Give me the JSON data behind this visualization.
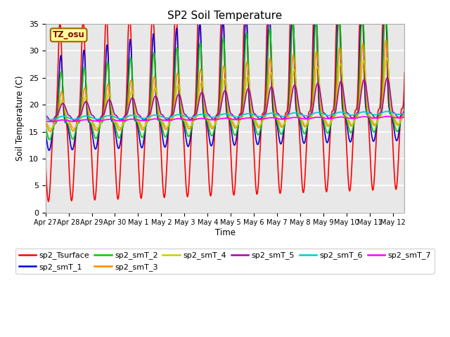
{
  "title": "SP2 Soil Temperature",
  "ylabel": "Soil Temperature (C)",
  "xlabel": "Time",
  "ylim": [
    0,
    35
  ],
  "background_color": "#ffffff",
  "plot_bg_color": "#e8e8e8",
  "grid_color": "#ffffff",
  "tz_label": "TZ_osu",
  "series_colors": {
    "sp2_Tsurface": "#ff0000",
    "sp2_smT_1": "#0000dd",
    "sp2_smT_2": "#00cc00",
    "sp2_smT_3": "#ff8800",
    "sp2_smT_4": "#cccc00",
    "sp2_smT_5": "#aa00aa",
    "sp2_smT_6": "#00cccc",
    "sp2_smT_7": "#ff00ff"
  },
  "x_tick_labels": [
    "Apr 27",
    "Apr 28",
    "Apr 29",
    "Apr 30",
    "May 1",
    "May 2",
    "May 3",
    "May 4",
    "May 5",
    "May 6",
    "May 7",
    "May 8",
    "May 9",
    "May 10",
    "May 11",
    "May 12"
  ],
  "linewidth": 1.2,
  "figsize": [
    6.4,
    4.8
  ],
  "dpi": 100
}
